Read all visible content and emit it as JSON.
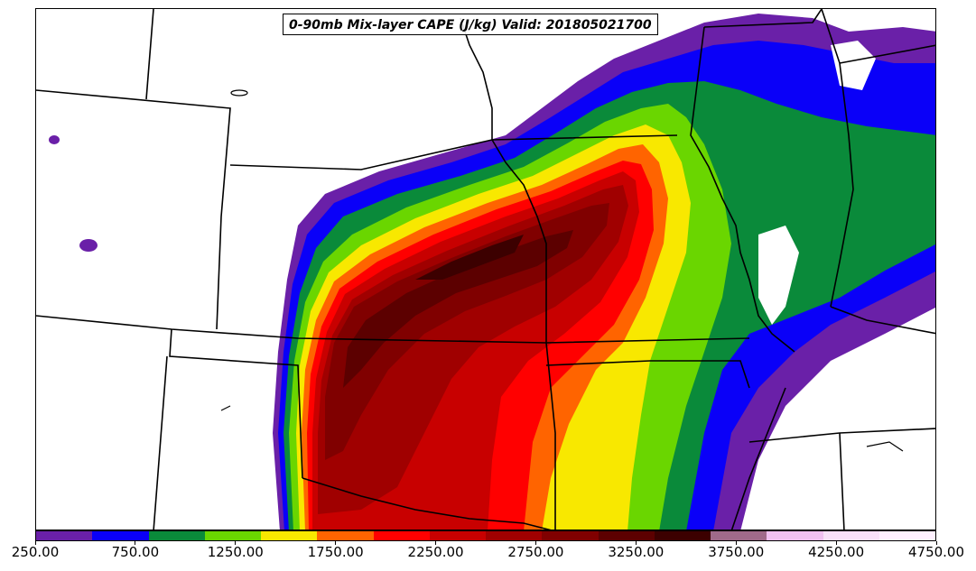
{
  "title": "0-90mb Mix-layer CAPE (J/kg) Valid: 201805021700",
  "colorbar": {
    "colors": [
      "#6a20a8",
      "#0a00f8",
      "#0a8a3a",
      "#6ad600",
      "#f8e800",
      "#ff6400",
      "#ff0000",
      "#c80000",
      "#a00000",
      "#800000",
      "#5c0000",
      "#3c0000",
      "#a06a8a",
      "#f0c0f0",
      "#f8e0f8",
      "#fff0ff"
    ],
    "tick_labels": [
      "250.00",
      "750.00",
      "1250.00",
      "1750.00",
      "2250.00",
      "2750.00",
      "3250.00",
      "3750.00",
      "4250.00",
      "4750.00"
    ]
  },
  "field": {
    "variable": "0-90mb Mix-layer CAPE",
    "units": "J/kg",
    "valid_time": "201805021700"
  }
}
